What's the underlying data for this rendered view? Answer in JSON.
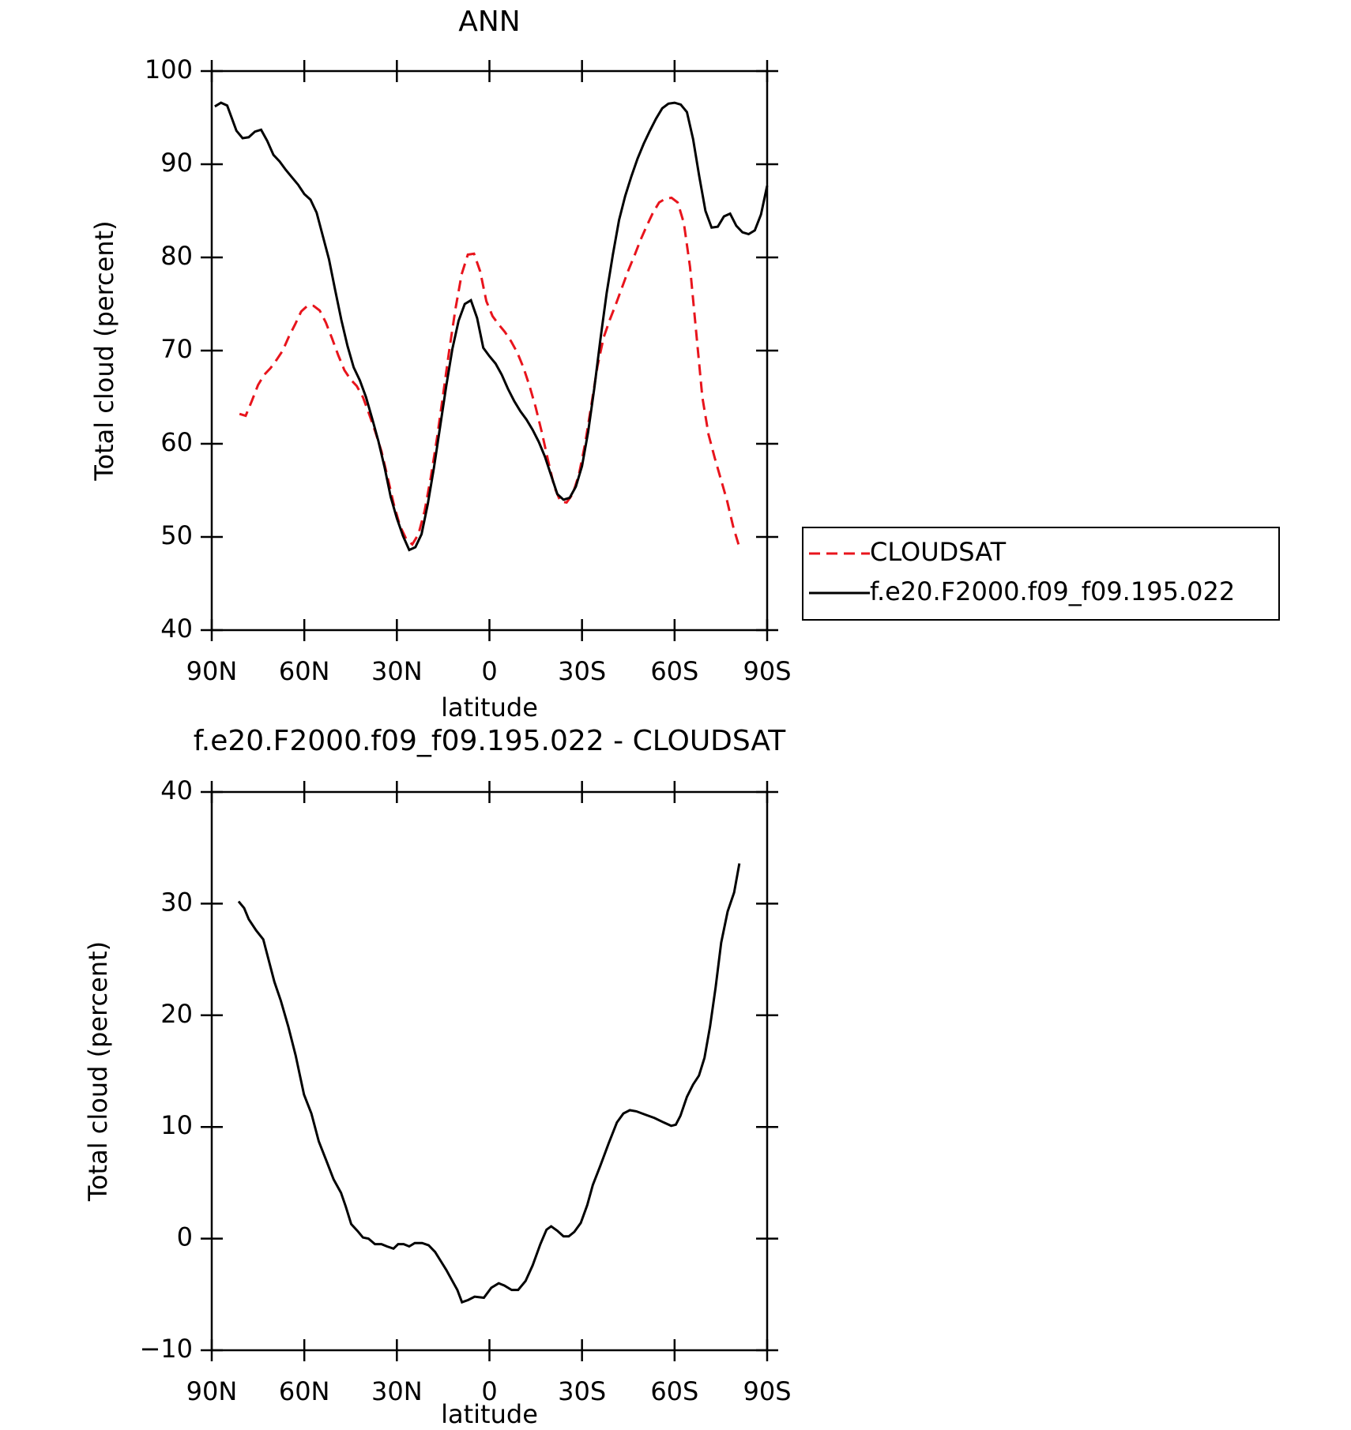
{
  "chart_data": [
    {
      "type": "line",
      "title": "ANN",
      "xlabel": "latitude",
      "ylabel": "Total cloud (percent)",
      "xlim": [
        90,
        -90
      ],
      "xticks": [
        {
          "value": 90,
          "label": "90N"
        },
        {
          "value": 60,
          "label": "60N"
        },
        {
          "value": 30,
          "label": "30N"
        },
        0,
        {
          "value": -30,
          "label": "30S"
        },
        {
          "value": -60,
          "label": "60S"
        },
        {
          "value": -90,
          "label": "90S"
        }
      ],
      "ylim": [
        40,
        100
      ],
      "yticks": [
        40,
        50,
        60,
        70,
        80,
        90,
        100
      ],
      "legend": "outside-right",
      "series": [
        {
          "name": "CLOUDSAT",
          "color": "#e8141c",
          "dash": "dashed",
          "x": [
            81,
            79,
            77,
            75,
            73,
            71,
            69,
            67,
            65,
            63,
            61,
            59,
            57,
            55,
            53,
            51,
            49,
            47,
            45,
            43,
            41,
            39,
            37,
            35,
            33,
            31,
            29,
            27,
            25,
            23,
            21,
            19,
            17,
            15,
            13,
            11,
            9,
            7,
            5,
            3,
            1,
            -1,
            -3,
            -5,
            -7,
            -9,
            -11,
            -13,
            -15,
            -17,
            -19,
            -21,
            -23,
            -25,
            -27,
            -29,
            -31,
            -33,
            -35,
            -37,
            -39,
            -41,
            -43,
            -45,
            -47,
            -49,
            -51,
            -53,
            -55,
            -57,
            -59,
            -61,
            -63,
            -65,
            -67,
            -69,
            -71,
            -73,
            -75,
            -77,
            -79,
            -81
          ],
          "values": [
            63.2,
            63.0,
            64.6,
            66.3,
            67.4,
            68.1,
            69.0,
            70.0,
            71.5,
            72.8,
            74.2,
            74.8,
            74.8,
            74.3,
            73.0,
            71.3,
            69.5,
            67.9,
            66.9,
            66.2,
            65.0,
            63.2,
            61.3,
            59.2,
            56.4,
            53.5,
            51.2,
            49.8,
            49.2,
            50.3,
            52.8,
            56.4,
            60.6,
            65.3,
            70.1,
            74.5,
            78.2,
            80.3,
            80.4,
            78.5,
            75.3,
            73.7,
            72.8,
            72.0,
            71.0,
            69.8,
            68.2,
            66.2,
            63.9,
            61.2,
            58.2,
            55.4,
            53.8,
            53.7,
            54.6,
            56.7,
            60.0,
            64.1,
            68.3,
            71.4,
            73.3,
            75.0,
            76.8,
            78.6,
            80.2,
            81.9,
            83.4,
            84.8,
            85.9,
            86.3,
            86.4,
            85.9,
            83.7,
            79.0,
            72.0,
            65.0,
            61.0,
            58.5,
            56.2,
            53.9,
            51.1,
            48.9
          ]
        },
        {
          "name": "f.e20.F2000.f09_f09.195.022",
          "color": "#000000",
          "dash": "solid",
          "x": [
            89,
            87,
            85,
            82,
            80,
            78,
            76,
            74,
            72,
            70,
            68,
            66,
            64,
            62,
            60,
            58,
            56,
            54,
            52,
            50,
            48,
            46,
            44,
            42,
            40,
            38,
            36,
            34,
            32,
            30,
            28,
            26,
            24,
            22,
            20,
            18,
            16,
            14,
            12,
            10,
            8,
            6,
            4,
            2,
            0,
            -2,
            -4,
            -6,
            -8,
            -10,
            -12,
            -14,
            -16,
            -18,
            -20,
            -22,
            -24,
            -26,
            -28,
            -30,
            -32,
            -34,
            -36,
            -38,
            -40,
            -42,
            -44,
            -46,
            -48,
            -50,
            -52,
            -54,
            -56,
            -58,
            -60,
            -62,
            -64,
            -66,
            -68,
            -70,
            -72,
            -74,
            -76,
            -78,
            -80,
            -82,
            -84,
            -86,
            -88,
            -90
          ],
          "values": [
            96.2,
            96.6,
            96.3,
            93.6,
            92.8,
            92.9,
            93.5,
            93.7,
            92.5,
            91.0,
            90.3,
            89.4,
            88.6,
            87.8,
            86.8,
            86.2,
            84.8,
            82.3,
            79.8,
            76.5,
            73.3,
            70.5,
            68.2,
            66.8,
            65.0,
            62.7,
            60.3,
            57.5,
            54.3,
            52.0,
            50.1,
            48.6,
            48.9,
            50.3,
            53.5,
            57.4,
            61.8,
            66.2,
            70.2,
            73.2,
            75.0,
            75.4,
            73.5,
            70.3,
            69.4,
            68.6,
            67.4,
            65.9,
            64.6,
            63.5,
            62.6,
            61.5,
            60.2,
            58.6,
            56.6,
            54.6,
            54.0,
            54.2,
            55.4,
            57.6,
            61.3,
            66.0,
            71.3,
            76.2,
            80.3,
            84.0,
            86.6,
            88.7,
            90.6,
            92.2,
            93.6,
            94.9,
            96.0,
            96.5,
            96.6,
            96.4,
            95.6,
            92.7,
            88.7,
            85.0,
            83.2,
            83.3,
            84.4,
            84.7,
            83.4,
            82.7,
            82.5,
            82.9,
            84.6,
            87.7
          ]
        }
      ]
    },
    {
      "type": "line",
      "title": "f.e20.F2000.f09_f09.195.022 - CLOUDSAT",
      "xlabel": "latitude",
      "ylabel": "Total cloud (percent)",
      "xlim": [
        90,
        -90
      ],
      "xticks": [
        {
          "value": 90,
          "label": "90N"
        },
        {
          "value": 60,
          "label": "60N"
        },
        {
          "value": 30,
          "label": "30N"
        },
        0,
        {
          "value": -30,
          "label": "30S"
        },
        {
          "value": -60,
          "label": "60S"
        },
        {
          "value": -90,
          "label": "90S"
        }
      ],
      "ylim": [
        -10,
        40
      ],
      "yticks": [
        {
          "value": -10,
          "label": "−10"
        },
        0,
        10,
        20,
        30,
        40
      ],
      "series": [
        {
          "color": "#000000",
          "dash": "solid",
          "x": [
            81.3,
            79.5,
            78,
            75.6,
            73.3,
            71.5,
            69.7,
            67.6,
            65.2,
            62.8,
            60.1,
            57.7,
            55.3,
            52.6,
            50.5,
            48.1,
            46.6,
            44.8,
            42.8,
            41,
            39.2,
            37.1,
            35,
            33.2,
            31.1,
            29.6,
            27.8,
            26,
            24.2,
            21.8,
            19.7,
            17.6,
            15.8,
            14,
            12.2,
            10.4,
            8.9,
            6.9,
            4.8,
            1.8,
            -0.6,
            -3,
            -4.8,
            -7.2,
            -9.3,
            -11.7,
            -14,
            -16.5,
            -18.5,
            -20,
            -22,
            -24,
            -25.7,
            -27.5,
            -29.6,
            -31.7,
            -33.5,
            -35.9,
            -38.6,
            -41.3,
            -43.4,
            -45.5,
            -47.6,
            -50.5,
            -53.5,
            -56.5,
            -58.9,
            -60.4,
            -61.9,
            -64,
            -66,
            -67.9,
            -69.7,
            -71.5,
            -73.3,
            -75.1,
            -77.2,
            -79.3,
            -81
          ],
          "values": [
            30.2,
            29.6,
            28.6,
            27.6,
            26.8,
            24.9,
            23.0,
            21.3,
            19.0,
            16.4,
            12.9,
            11.2,
            8.7,
            6.8,
            5.3,
            4.1,
            2.9,
            1.3,
            0.7,
            0.1,
            0.0,
            -0.5,
            -0.5,
            -0.7,
            -0.9,
            -0.5,
            -0.5,
            -0.7,
            -0.4,
            -0.4,
            -0.6,
            -1.2,
            -2.0,
            -2.8,
            -3.7,
            -4.6,
            -5.7,
            -5.5,
            -5.2,
            -5.3,
            -4.4,
            -4.0,
            -4.2,
            -4.6,
            -4.6,
            -3.8,
            -2.4,
            -0.5,
            0.8,
            1.1,
            0.7,
            0.2,
            0.2,
            0.6,
            1.4,
            3.0,
            4.8,
            6.5,
            8.5,
            10.4,
            11.2,
            11.5,
            11.4,
            11.1,
            10.8,
            10.4,
            10.1,
            10.2,
            11.0,
            12.7,
            13.8,
            14.6,
            16.2,
            19.0,
            22.5,
            26.5,
            29.3,
            31.0,
            33.6
          ]
        }
      ]
    }
  ]
}
